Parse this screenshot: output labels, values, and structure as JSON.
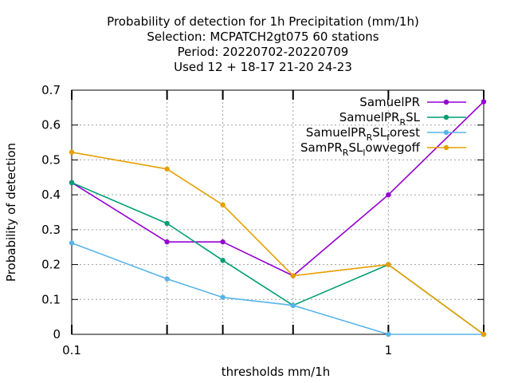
{
  "chart_data": {
    "type": "line",
    "title_lines": [
      "Probability of detection  for 1h Precipitation (mm/1h)",
      "Selection: MCPATCH2gt075     60 stations",
      "Period: 20220702-20220709",
      "Used  12 + 18-17 21-20 24-23"
    ],
    "xlabel": "thresholds mm/1h",
    "ylabel": "Probability of detection",
    "x_scale": "log",
    "xlim": [
      0.1,
      2
    ],
    "ylim": [
      0,
      0.7
    ],
    "x_tick_labels": [
      "0.1",
      "1"
    ],
    "y_ticks": [
      0,
      0.1,
      0.2,
      0.3,
      0.4,
      0.5,
      0.6,
      0.7
    ],
    "y_tick_labels": [
      "0",
      "0.1",
      "0.2",
      "0.3",
      "0.4",
      "0.5",
      "0.6",
      "0.7"
    ],
    "x": [
      0.1,
      0.2,
      0.3,
      0.5,
      1,
      2
    ],
    "grid": true,
    "legend_position": "top-right",
    "series": [
      {
        "name": "SamuelPR",
        "name_base": "SamuelPR",
        "name_segments": [],
        "color": "#9400d3",
        "values": [
          0.435,
          0.265,
          0.265,
          0.168,
          0.4,
          0.667
        ]
      },
      {
        "name": "SamuelPR_RSL",
        "name_base": "SamuelPR",
        "name_segments": [
          {
            "sub": "R"
          },
          {
            "text": "SL"
          }
        ],
        "color": "#009e73",
        "values": [
          0.435,
          0.318,
          0.212,
          0.083,
          0.2,
          0.0
        ]
      },
      {
        "name": "SamuelPR_RSL_forest",
        "name_base": "SamuelPR",
        "name_segments": [
          {
            "sub": "R"
          },
          {
            "text": "SL"
          },
          {
            "sub": "f"
          },
          {
            "text": "orest"
          }
        ],
        "color": "#56b4e9",
        "values": [
          0.262,
          0.159,
          0.106,
          0.083,
          0.0,
          0.0
        ]
      },
      {
        "name": "SamPR_RSL_lowvegoff",
        "name_base": "SamPR",
        "name_segments": [
          {
            "sub": "R"
          },
          {
            "text": "SL"
          },
          {
            "sub": "l"
          },
          {
            "text": "owvegoff"
          }
        ],
        "color": "#e69f00",
        "values": [
          0.522,
          0.474,
          0.371,
          0.168,
          0.2,
          0.0
        ]
      }
    ]
  }
}
